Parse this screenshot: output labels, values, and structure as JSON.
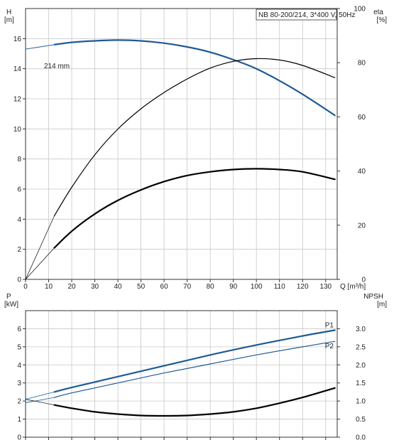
{
  "chart_data": [
    {
      "type": "line",
      "panel": "head-efficiency",
      "title": "NB 80-200/214, 3*400 V, 50Hz",
      "xlabel": "Q [m³/h]",
      "x_ticks": [
        0,
        10,
        20,
        30,
        40,
        50,
        60,
        70,
        80,
        90,
        100,
        110,
        120,
        130
      ],
      "xlim": [
        0,
        135
      ],
      "left_axis": {
        "label_top": "H",
        "label_unit": "[m]",
        "ticks": [
          0,
          2,
          4,
          6,
          8,
          10,
          12,
          14,
          16
        ],
        "ylim": [
          0,
          18
        ]
      },
      "right_axis": {
        "label_top": "eta",
        "label_unit": "[%]",
        "ticks": [
          0,
          20,
          40,
          60,
          80,
          100
        ],
        "ylim": [
          0,
          100
        ]
      },
      "curve_label": "214 mm",
      "series": [
        {
          "axis": "left",
          "color": "#1f5a96",
          "width": 2.2,
          "x": [
            12.5,
            20,
            30,
            40,
            50,
            60,
            70,
            80,
            90,
            100,
            110,
            120,
            134
          ],
          "y": [
            15.6,
            15.75,
            15.85,
            15.9,
            15.85,
            15.7,
            15.45,
            15.1,
            14.6,
            14.0,
            13.2,
            12.3,
            10.9
          ]
        },
        {
          "axis": "left",
          "color": "#1f5a96",
          "width": 0.9,
          "x": [
            0,
            12.5
          ],
          "y": [
            15.3,
            15.6
          ]
        },
        {
          "axis": "right",
          "color": "#000000",
          "width": 1.2,
          "x": [
            12.5,
            20,
            30,
            40,
            50,
            60,
            70,
            80,
            90,
            100,
            110,
            120,
            134
          ],
          "y": [
            23.5,
            34,
            46,
            55.5,
            63,
            69,
            74,
            78,
            80.5,
            81.5,
            81,
            79,
            74.5
          ]
        },
        {
          "axis": "right",
          "color": "#000000",
          "width": 0.7,
          "x": [
            0,
            12.5
          ],
          "y": [
            0,
            23.5
          ]
        },
        {
          "axis": "left",
          "color": "#000000",
          "width": 2.2,
          "x": [
            12.5,
            20,
            30,
            40,
            50,
            60,
            70,
            80,
            90,
            100,
            110,
            120,
            134
          ],
          "y": [
            2.1,
            3.2,
            4.35,
            5.25,
            5.95,
            6.5,
            6.9,
            7.15,
            7.3,
            7.35,
            7.3,
            7.15,
            6.65
          ]
        },
        {
          "axis": "left",
          "color": "#000000",
          "width": 0.7,
          "x": [
            0,
            12.5
          ],
          "y": [
            0,
            2.1
          ]
        }
      ]
    },
    {
      "type": "line",
      "panel": "power-npsh",
      "x_ticks": [
        0,
        10,
        20,
        30,
        40,
        50,
        60,
        70,
        80,
        90,
        100,
        110,
        120,
        130
      ],
      "xlim": [
        0,
        135
      ],
      "left_axis": {
        "label_top": "P",
        "label_unit": "[kW]",
        "ticks": [
          0,
          1,
          2,
          3,
          4,
          5,
          6
        ],
        "ylim": [
          0,
          7
        ]
      },
      "right_axis": {
        "label_top": "NPSH",
        "label_unit": "[m]",
        "ticks": [
          "0.0",
          "0.5",
          "1.0",
          "1.5",
          "2.0",
          "2.5",
          "3.0"
        ],
        "ylim": [
          0,
          3.5
        ]
      },
      "series": [
        {
          "name": "P1",
          "axis": "left",
          "color": "#1f5a96",
          "width": 2.2,
          "x": [
            12.5,
            20,
            40,
            60,
            80,
            100,
            120,
            134
          ],
          "y": [
            2.5,
            2.75,
            3.35,
            3.95,
            4.55,
            5.1,
            5.6,
            5.92
          ]
        },
        {
          "axis": "left",
          "color": "#1f5a96",
          "width": 0.8,
          "x": [
            0,
            12.5
          ],
          "y": [
            2.1,
            2.5
          ]
        },
        {
          "name": "P2",
          "axis": "left",
          "color": "#1f5a96",
          "width": 1.2,
          "x": [
            12.5,
            20,
            40,
            60,
            80,
            100,
            120,
            134
          ],
          "y": [
            2.2,
            2.45,
            3.0,
            3.55,
            4.05,
            4.55,
            5.0,
            5.3
          ]
        },
        {
          "axis": "left",
          "color": "#1f5a96",
          "width": 0.8,
          "x": [
            0,
            12.5
          ],
          "y": [
            1.9,
            2.2
          ]
        },
        {
          "axis": "right",
          "color": "#000000",
          "width": 2.2,
          "x": [
            12.5,
            20,
            30,
            40,
            50,
            60,
            70,
            80,
            90,
            100,
            110,
            120,
            134
          ],
          "y": [
            0.89,
            0.8,
            0.7,
            0.64,
            0.6,
            0.59,
            0.6,
            0.64,
            0.7,
            0.8,
            0.94,
            1.1,
            1.36
          ]
        },
        {
          "axis": "right",
          "color": "#000000",
          "width": 0.7,
          "x": [
            0,
            12.5
          ],
          "y": [
            1.05,
            0.89
          ]
        }
      ]
    }
  ]
}
